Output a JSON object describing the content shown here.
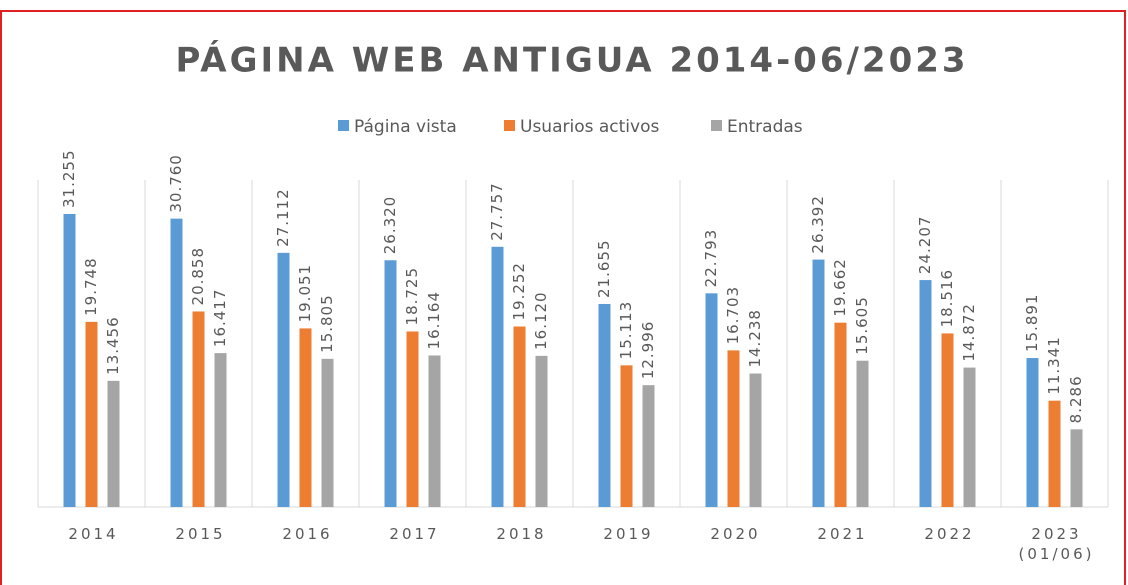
{
  "chart_data": {
    "type": "bar",
    "title": "PÁGINA WEB ANTIGUA 2014-06/2023",
    "categories": [
      "2014",
      "2015",
      "2016",
      "2017",
      "2018",
      "2019",
      "2020",
      "2021",
      "2022",
      "2023\n(01/06)"
    ],
    "series": [
      {
        "name": "Página vista",
        "color": "#5b9bd5",
        "values": [
          31255,
          30760,
          27112,
          26320,
          27757,
          21655,
          22793,
          26392,
          24207,
          15891
        ],
        "value_labels": [
          "31.255",
          "30.760",
          "27.112",
          "26.320",
          "27.757",
          "21.655",
          "22.793",
          "26.392",
          "24.207",
          "15.891"
        ]
      },
      {
        "name": "Usuarios activos",
        "color": "#ed7d31",
        "values": [
          19748,
          20858,
          19051,
          18725,
          19252,
          15113,
          16703,
          19662,
          18516,
          11341
        ],
        "value_labels": [
          "19.748",
          "20.858",
          "19.051",
          "18.725",
          "19.252",
          "15.113",
          "16.703",
          "19.662",
          "18.516",
          "11.341"
        ]
      },
      {
        "name": "Entradas",
        "color": "#a5a5a5",
        "values": [
          13456,
          16417,
          15805,
          16164,
          16120,
          12996,
          14238,
          15605,
          14872,
          8286
        ],
        "value_labels": [
          "13.456",
          "16.417",
          "15.805",
          "16.164",
          "16.120",
          "12.996",
          "14.238",
          "15.605",
          "14.872",
          "8.286"
        ]
      }
    ],
    "legend": "top",
    "grid": true
  }
}
